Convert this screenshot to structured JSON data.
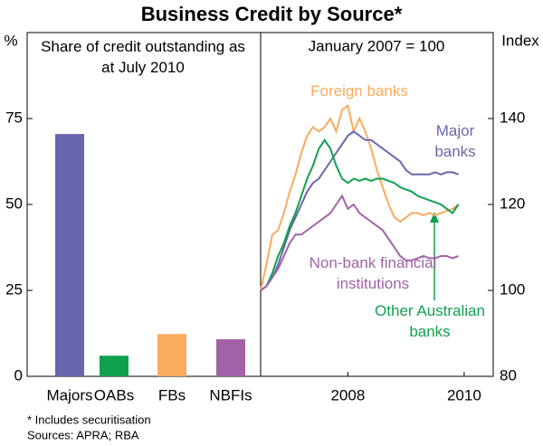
{
  "title": "Business Credit by Source*",
  "notes": [
    "*   Includes securitisation",
    "Sources: APRA; RBA"
  ],
  "chart_data": [
    {
      "type": "bar",
      "subtitle": "Share of credit outstanding as at July 2010",
      "y_label": "%",
      "categories": [
        "Majors",
        "OABs",
        "FBs",
        "NBFIs"
      ],
      "values": [
        70.5,
        6,
        12.3,
        10.8
      ],
      "colors": [
        "#6a66ad",
        "#10a14f",
        "#f9ab5e",
        "#a262a8"
      ],
      "ylim": [
        0,
        100
      ],
      "yticks": [
        0,
        25,
        50,
        75
      ]
    },
    {
      "type": "line",
      "subtitle": "January 2007 = 100",
      "y_label": "Index",
      "x": [
        2007.0,
        2007.1,
        2007.2,
        2007.3,
        2007.4,
        2007.5,
        2007.6,
        2007.7,
        2007.8,
        2007.9,
        2008.0,
        2008.1,
        2008.2,
        2008.3,
        2008.4,
        2008.5,
        2008.6,
        2008.7,
        2008.8,
        2008.9,
        2009.0,
        2009.1,
        2009.2,
        2009.3,
        2009.4,
        2009.5,
        2009.6,
        2009.7,
        2009.8,
        2009.9,
        2010.0,
        2010.1,
        2010.2,
        2010.3,
        2010.4
      ],
      "xlim": [
        2007,
        2011
      ],
      "xticks": [
        {
          "value": 2008.5,
          "label": "2008"
        },
        {
          "value": 2010.5,
          "label": "2010"
        }
      ],
      "ylim": [
        80,
        160
      ],
      "yticks": [
        80,
        100,
        120,
        140
      ],
      "series": [
        {
          "name": "Foreign banks",
          "color": "#f9ab5e",
          "values": [
            100,
            106,
            113,
            114,
            118,
            123,
            127,
            132,
            136,
            138,
            137,
            138,
            140,
            137,
            142,
            143,
            137,
            140,
            137,
            133,
            128,
            124,
            120,
            117,
            116,
            117,
            118,
            118,
            117.5,
            118,
            117.5,
            118,
            118.5,
            119,
            120
          ]
        },
        {
          "name": "Major banks",
          "color": "#6a66ad",
          "values": [
            100,
            101,
            103,
            106,
            110,
            114,
            117,
            120,
            123,
            125,
            126,
            128,
            130,
            132,
            134,
            136,
            137,
            136,
            135,
            135,
            134,
            133,
            132,
            131,
            130,
            128,
            127,
            127,
            127,
            127,
            127.5,
            127,
            127.5,
            127.5,
            127
          ]
        },
        {
          "name": "Other Australian banks",
          "color": "#10a14f",
          "values": [
            100,
            101,
            104,
            108,
            111,
            115,
            118,
            122,
            126,
            129,
            133,
            135,
            133,
            129,
            126,
            125,
            126,
            125.5,
            126,
            125.5,
            126,
            126,
            125.5,
            125,
            124,
            123.5,
            123,
            122,
            121.5,
            121,
            120.5,
            120,
            119,
            118,
            120
          ]
        },
        {
          "name": "Non-bank financial institutions",
          "color": "#a262a8",
          "values": [
            100,
            101,
            103,
            105,
            108,
            111,
            113,
            113,
            114,
            115,
            116,
            117,
            118,
            120,
            122,
            119,
            120,
            118,
            117,
            116,
            115,
            114,
            112,
            110,
            108,
            107,
            107,
            107.5,
            108,
            107.5,
            107.5,
            108,
            108,
            107.5,
            108
          ]
        }
      ]
    }
  ]
}
